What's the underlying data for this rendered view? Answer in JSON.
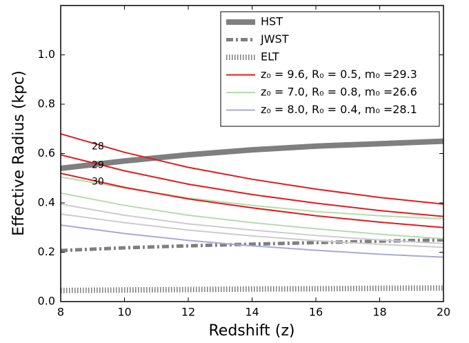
{
  "chart_data": {
    "type": "line",
    "xlabel": "Redshift (z)",
    "ylabel": "Effective Radius (kpc)",
    "x": [
      8,
      10,
      12,
      14,
      16,
      18,
      20
    ],
    "xlim": [
      8,
      20
    ],
    "xticks": [
      8,
      10,
      12,
      14,
      16,
      18,
      20
    ],
    "ylim": [
      0,
      1.2
    ],
    "yticks": [
      {
        "value": 0,
        "label": "0.0"
      },
      0.2,
      0.4,
      0.6,
      0.8,
      {
        "value": 1,
        "label": "1.0"
      }
    ],
    "legend": "upper right",
    "annotations": [
      "28",
      "29",
      "30"
    ],
    "series": [
      {
        "name": "HST",
        "color": "#7f7f7f",
        "style": "solid",
        "width": 8,
        "values": [
          0.54,
          0.57,
          0.595,
          0.615,
          0.63,
          0.64,
          0.65
        ]
      },
      {
        "name": "JWST",
        "color": "#7f7f7f",
        "style": "dashdot",
        "width": 5,
        "values": [
          0.207,
          0.218,
          0.226,
          0.233,
          0.239,
          0.245,
          0.25
        ]
      },
      {
        "name": "ELT",
        "color": "#7f7f7f",
        "style": "dotted",
        "width": 8,
        "values": [
          0.045,
          0.047,
          0.049,
          0.051,
          0.052,
          0.054,
          0.055
        ]
      },
      {
        "name": "z₀ = 9.6, R₀ = 0.5, m₀ =29.3",
        "color": "#e31a1c",
        "style": "solid",
        "width": 2,
        "values": [
          0.68,
          0.605,
          0.544,
          0.496,
          0.456,
          0.422,
          0.395
        ]
      },
      {
        "name": "z₀ = 7.0, R₀ = 0.8, m₀ =26.6",
        "color": "#b5dbad",
        "style": "solid",
        "width": 2,
        "values": [
          0.505,
          0.46,
          0.42,
          0.39,
          0.365,
          0.348,
          0.335
        ]
      },
      {
        "name": "z₀ = 8.0, R₀ = 0.4, m₀ =28.1",
        "color": "#a8a8d6",
        "style": "solid",
        "width": 2,
        "values": [
          0.31,
          0.276,
          0.248,
          0.226,
          0.208,
          0.192,
          0.18
        ]
      },
      {
        "color": "#e31a1c",
        "style": "solid",
        "width": 2,
        "values": [
          0.595,
          0.53,
          0.476,
          0.434,
          0.399,
          0.369,
          0.345
        ]
      },
      {
        "color": "#e31a1c",
        "style": "solid",
        "width": 2,
        "values": [
          0.52,
          0.463,
          0.416,
          0.38,
          0.348,
          0.322,
          0.3
        ]
      },
      {
        "color": "#b5dbad",
        "style": "solid",
        "width": 2,
        "values": [
          0.44,
          0.39,
          0.35,
          0.32,
          0.295,
          0.273,
          0.255
        ]
      },
      {
        "color": "#cccccc",
        "style": "solid",
        "width": 2,
        "values": [
          0.395,
          0.35,
          0.315,
          0.29,
          0.268,
          0.25,
          0.235
        ]
      },
      {
        "color": "#cccccc",
        "style": "solid",
        "width": 2,
        "values": [
          0.355,
          0.32,
          0.29,
          0.266,
          0.247,
          0.232,
          0.22
        ]
      }
    ]
  }
}
